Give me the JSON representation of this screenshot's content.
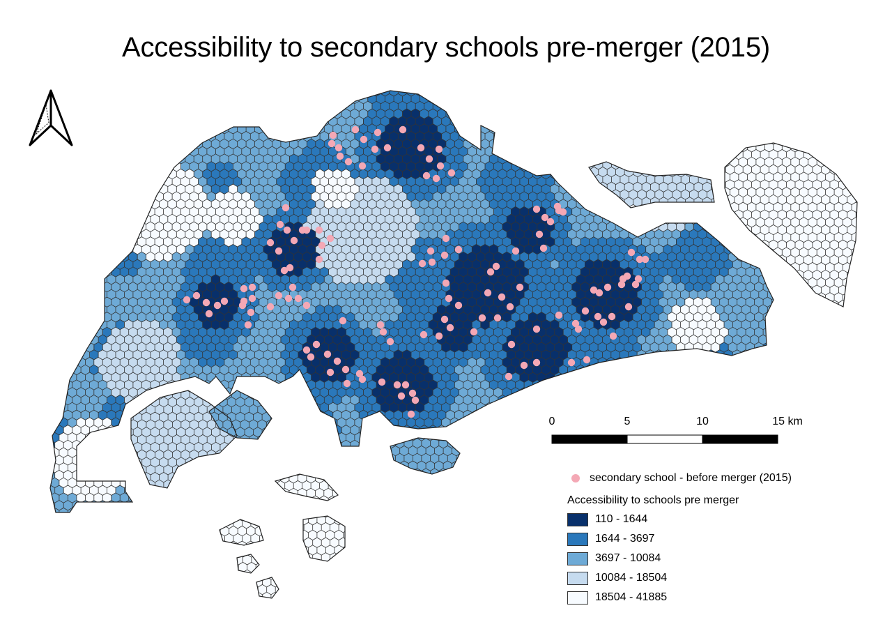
{
  "map": {
    "title": "Accessibility to secondary schools pre-merger (2015)",
    "north_arrow_icon": "north-arrow-icon",
    "scale_bar": {
      "ticks": [
        "0",
        "5",
        "10",
        "15 km"
      ]
    },
    "point_legend": {
      "label": "secondary school - before merger (2015)",
      "color": "#f4a8b5"
    },
    "legend": {
      "title": "Accessibility to schools pre merger",
      "classes": [
        {
          "label": "110 - 1644",
          "color": "#08306b"
        },
        {
          "label": "1644 - 3697",
          "color": "#2a78bb"
        },
        {
          "label": "3697 - 10084",
          "color": "#6eaad6"
        },
        {
          "label": "10084 - 18504",
          "color": "#c6dbef"
        },
        {
          "label": "18504 - 41885",
          "color": "#f7fbff"
        }
      ]
    },
    "colors": {
      "hex_outline": "#333333",
      "boundary": "#222222"
    }
  }
}
